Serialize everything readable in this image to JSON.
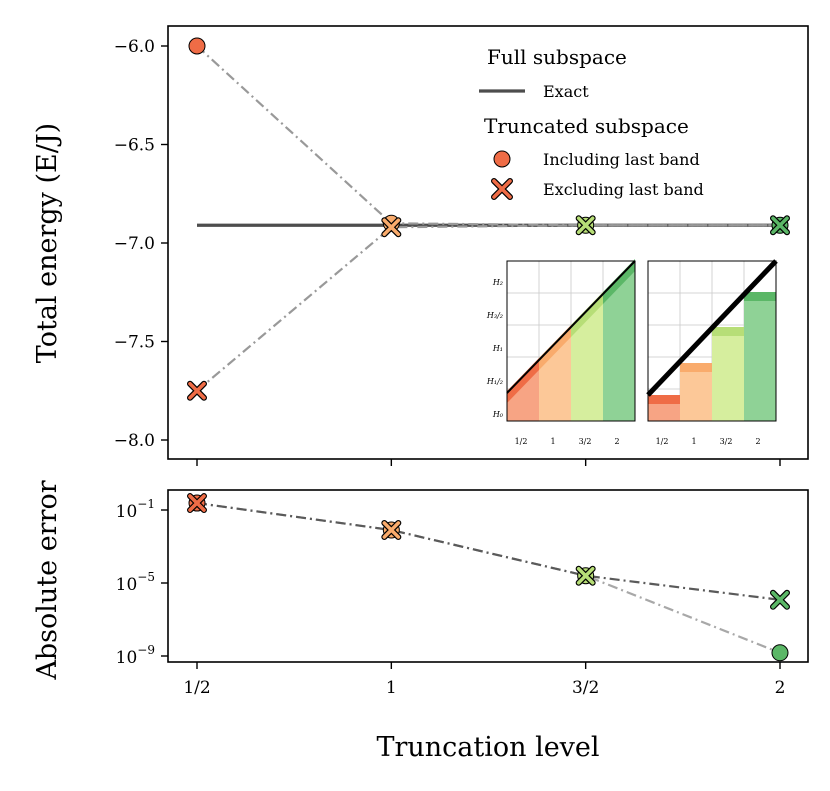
{
  "chart_data": [
    {
      "type": "line",
      "panel": "top",
      "xlabel": "",
      "ylabel": "Total energy (E/J)",
      "x_positions": [
        0.5,
        1,
        1.5,
        2
      ],
      "ylim": [
        -8.1,
        -5.9
      ],
      "yticks": [
        -6.0,
        -6.5,
        -7.0,
        -7.5,
        -8.0
      ],
      "ytick_labels": [
        "−6.0",
        "−6.5",
        "−7.0",
        "−7.5",
        "−8.0"
      ],
      "exact": {
        "name": "Exact",
        "value": -6.91,
        "color": "#4d4d4d"
      },
      "series": [
        {
          "name": "Including last band",
          "marker": "circle",
          "values": [
            -6.0,
            -6.9,
            -6.91,
            -6.91
          ]
        },
        {
          "name": "Excluding last band",
          "marker": "x",
          "values": [
            -7.75,
            -6.92,
            -6.91,
            -6.91
          ]
        }
      ],
      "legend": {
        "placement": "top-right",
        "full_header": "Full subspace",
        "exact_label": "Exact",
        "trunc_header": "Truncated subspace",
        "including_label": "Including last band",
        "excluding_label": "Excluding last band"
      },
      "insets": [
        {
          "ytick_labels": [
            "H₀",
            "H₁/₂",
            "H₁",
            "H₃/₂",
            "H₂"
          ],
          "xtick_labels": [
            "1/2",
            "1",
            "3/2",
            "2"
          ],
          "variant": "including"
        },
        {
          "xtick_labels": [
            "1/2",
            "1",
            "3/2",
            "2"
          ],
          "variant": "excluding"
        }
      ]
    },
    {
      "type": "line",
      "panel": "bottom",
      "xlabel": "Truncation level",
      "ylabel": "Absolute error",
      "scale": "log",
      "ylim": [
        1e-09,
        1
      ],
      "ytick_labels": [
        {
          "base": "10",
          "exp": "−1"
        },
        {
          "base": "10",
          "exp": "−5"
        },
        {
          "base": "10",
          "exp": "−9"
        }
      ],
      "xtick_labels": [
        "1/2",
        "1",
        "3/2",
        "2"
      ],
      "series": [
        {
          "name": "Including last band",
          "marker": "circle",
          "values": [
            0.24,
            0.008,
            2.5e-05,
            1.5e-09
          ]
        },
        {
          "name": "Excluding last band",
          "marker": "x",
          "values": [
            0.24,
            0.008,
            2.5e-05,
            1.2e-06
          ]
        }
      ]
    }
  ],
  "level_colors": [
    "#ef6c46",
    "#f9ab6c",
    "#b7de77",
    "#5bb767"
  ]
}
